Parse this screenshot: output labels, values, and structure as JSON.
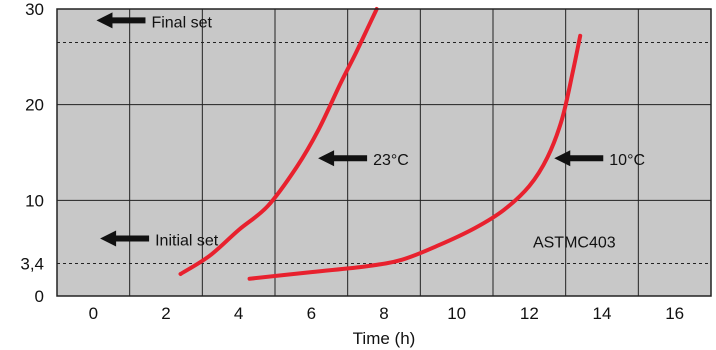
{
  "chart_data": {
    "type": "line",
    "xlabel": "Time (h)",
    "ylabel": "",
    "title": "",
    "x_ticks": [
      0,
      2,
      4,
      6,
      8,
      10,
      12,
      14,
      16
    ],
    "y_ticks": [
      {
        "value": 0,
        "label": "0"
      },
      {
        "value": 3.4,
        "label": "3,4"
      },
      {
        "value": 10,
        "label": "10"
      },
      {
        "value": 20,
        "label": "20"
      },
      {
        "value": 30,
        "label": "30"
      }
    ],
    "xlim": [
      -1,
      17
    ],
    "ylim": [
      0,
      30
    ],
    "grid": true,
    "background_color": "#c8c8c8",
    "line_color": "#e8212e",
    "reference_lines": [
      {
        "value": 3.4,
        "label": "Initial set"
      },
      {
        "value": 26.5,
        "label": "Final set"
      }
    ],
    "series": [
      {
        "name": "23°C",
        "points": [
          [
            2.4,
            2.3
          ],
          [
            3.2,
            4.2
          ],
          [
            4.0,
            6.9
          ],
          [
            4.8,
            9.4
          ],
          [
            5.6,
            13.5
          ],
          [
            6.2,
            17.4
          ],
          [
            6.8,
            22.2
          ],
          [
            7.2,
            25.2
          ],
          [
            7.6,
            28.4
          ],
          [
            7.8,
            30.0
          ]
        ]
      },
      {
        "name": "10°C",
        "points": [
          [
            4.3,
            1.8
          ],
          [
            6.0,
            2.5
          ],
          [
            7.5,
            3.1
          ],
          [
            8.5,
            3.8
          ],
          [
            9.5,
            5.3
          ],
          [
            10.5,
            7.1
          ],
          [
            11.3,
            9.0
          ],
          [
            12.0,
            11.5
          ],
          [
            12.5,
            14.5
          ],
          [
            12.9,
            18.5
          ],
          [
            13.2,
            23.5
          ],
          [
            13.4,
            27.2
          ]
        ]
      }
    ],
    "annotations": [
      {
        "text": "23°C",
        "x": 7.7,
        "y": 14.3,
        "arrow": "left"
      },
      {
        "text": "10°C",
        "x": 14.2,
        "y": 14.3,
        "arrow": "left"
      },
      {
        "text": "ASTMC403",
        "x": 12.1,
        "y": 5.7,
        "arrow": "none"
      },
      {
        "text": "Final set",
        "x": 1.6,
        "y": 28.7,
        "arrow": "left"
      },
      {
        "text": "Initial set",
        "x": 1.7,
        "y": 5.9,
        "arrow": "left"
      }
    ]
  }
}
